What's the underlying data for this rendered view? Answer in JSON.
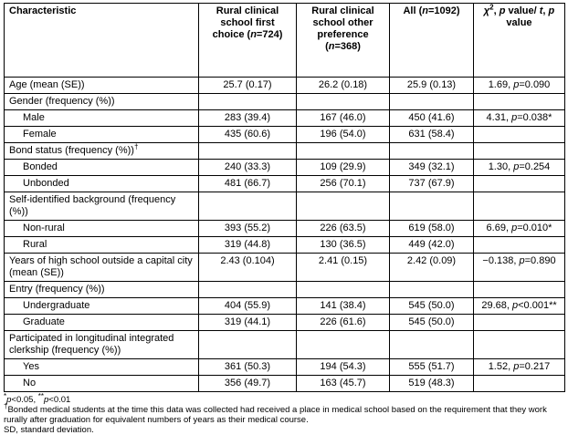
{
  "table": {
    "header": {
      "characteristic": "Characteristic",
      "first": [
        "Rural clinical school first choice (",
        "n",
        "=724)"
      ],
      "other": [
        "Rural clinical school other preference (",
        "n",
        "=368)"
      ],
      "all": [
        "All (",
        "n",
        "=1092)"
      ],
      "stat": [
        "χ",
        "2",
        ", ",
        "p",
        " value/ ",
        "t",
        ", ",
        "p",
        " value"
      ]
    },
    "sections": [
      {
        "label": "Age (mean (SE))",
        "values": [
          "25.7 (0.17)",
          "26.2 (0.18)",
          "25.9 (0.13)"
        ],
        "stat": [
          "1.69, ",
          "p",
          "=0.090"
        ]
      },
      {
        "label": "Gender (frequency (%))",
        "rows": [
          {
            "label": "Male",
            "values": [
              "283 (39.4)",
              "167 (46.0)",
              "450 (41.6)"
            ],
            "stat": [
              "4.31, ",
              "p",
              "=0.038*"
            ]
          },
          {
            "label": "Female",
            "values": [
              "435 (60.6)",
              "196 (54.0)",
              "631 (58.4)"
            ]
          }
        ]
      },
      {
        "label": "Bond status (frequency (%))",
        "mark": "†",
        "rows": [
          {
            "label": "Bonded",
            "values": [
              "240 (33.3)",
              "109 (29.9)",
              "349 (32.1)"
            ],
            "stat": [
              "1.30, ",
              "p",
              "=0.254"
            ]
          },
          {
            "label": "Unbonded",
            "values": [
              "481 (66.7)",
              "256 (70.1)",
              "737 (67.9)"
            ]
          }
        ]
      },
      {
        "label": "Self-identified background (frequency (%))",
        "rows": [
          {
            "label": "Non-rural",
            "values": [
              "393 (55.2)",
              "226 (63.5)",
              "619 (58.0)"
            ],
            "stat": [
              "6.69, ",
              "p",
              "=0.010*"
            ]
          },
          {
            "label": "Rural",
            "values": [
              "319 (44.8)",
              "130 (36.5)",
              "449 (42.0)"
            ]
          }
        ]
      },
      {
        "label": "Years of high school outside a capital city (mean (SE))",
        "values": [
          "2.43 (0.104)",
          "2.41 (0.15)",
          "2.42 (0.09)"
        ],
        "stat": [
          "−0.138, ",
          "p",
          "=0.890"
        ]
      },
      {
        "label": "Entry (frequency (%))",
        "rows": [
          {
            "label": "Undergraduate",
            "values": [
              "404 (55.9)",
              "141 (38.4)",
              "545 (50.0)"
            ],
            "stat": [
              "29.68, ",
              "p",
              "<0.001**"
            ]
          },
          {
            "label": "Graduate",
            "values": [
              "319 (44.1)",
              "226 (61.6)",
              "545 (50.0)"
            ]
          }
        ]
      },
      {
        "label": "Participated in longitudinal integrated clerkship (frequency (%))",
        "rows": [
          {
            "label": "Yes",
            "values": [
              "361 (50.3)",
              "194 (54.3)",
              "555 (51.7)"
            ],
            "stat": [
              "1.52, ",
              "p",
              "=0.217"
            ]
          },
          {
            "label": "No",
            "values": [
              "356 (49.7)",
              "163 (45.7)",
              "519 (48.3)"
            ]
          }
        ]
      }
    ]
  },
  "footnotes": [
    [
      "*",
      "p",
      "<0.05, ",
      "**",
      "p",
      "<0.01"
    ],
    {
      "mark": "†",
      "text": "Bonded medical students at the time this data was collected had received a place in medical school based on the requirement that they work rurally after graduation for equivalent numbers of years as their medical course."
    },
    "SD, standard deviation."
  ]
}
